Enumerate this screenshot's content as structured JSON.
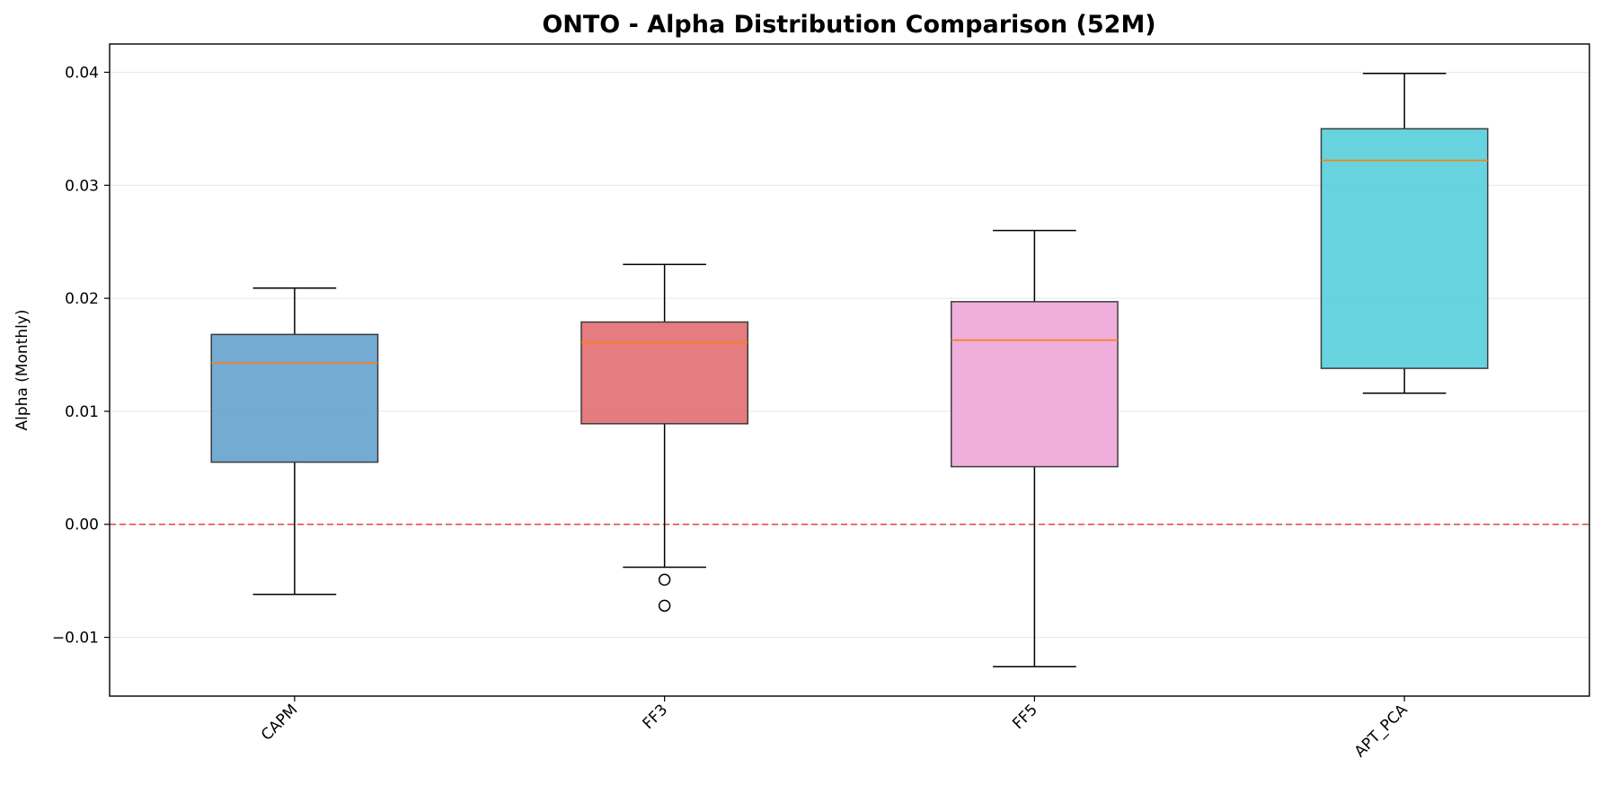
{
  "chart_data": {
    "type": "box",
    "title": "ONTO - Alpha Distribution Comparison (52M)",
    "xlabel": "",
    "ylabel": "Alpha (Monthly)",
    "ylim": [
      -0.0152,
      0.0425
    ],
    "yticks": [
      -0.01,
      0.0,
      0.01,
      0.02,
      0.03,
      0.04
    ],
    "ytick_labels": [
      "−0.01",
      "0.00",
      "0.01",
      "0.02",
      "0.03",
      "0.04"
    ],
    "grid": "y",
    "reference_line": {
      "y": 0.0,
      "color": "#e8423f",
      "style": "dashed"
    },
    "median_color": "#ff7f0e",
    "categories": [
      "CAPM",
      "FF3",
      "FF5",
      "APT_PCA"
    ],
    "boxes": [
      {
        "label": "CAPM",
        "whisker_low": -0.0062,
        "q1": 0.0055,
        "median": 0.0143,
        "q3": 0.0168,
        "whisker_high": 0.0209,
        "outliers": [],
        "color": "#5b9ccb"
      },
      {
        "label": "FF3",
        "whisker_low": -0.0038,
        "q1": 0.0089,
        "median": 0.0161,
        "q3": 0.0179,
        "whisker_high": 0.023,
        "outliers": [
          -0.0049,
          -0.0072
        ],
        "color": "#e06568"
      },
      {
        "label": "FF5",
        "whisker_low": -0.0126,
        "q1": 0.0051,
        "median": 0.0163,
        "q3": 0.0197,
        "whisker_high": 0.026,
        "outliers": [],
        "color": "#eda0d7"
      },
      {
        "label": "APT_PCA",
        "whisker_low": 0.0116,
        "q1": 0.0138,
        "median": 0.0322,
        "q3": 0.035,
        "whisker_high": 0.0399,
        "outliers": [],
        "color": "#4ccbd8"
      }
    ]
  }
}
